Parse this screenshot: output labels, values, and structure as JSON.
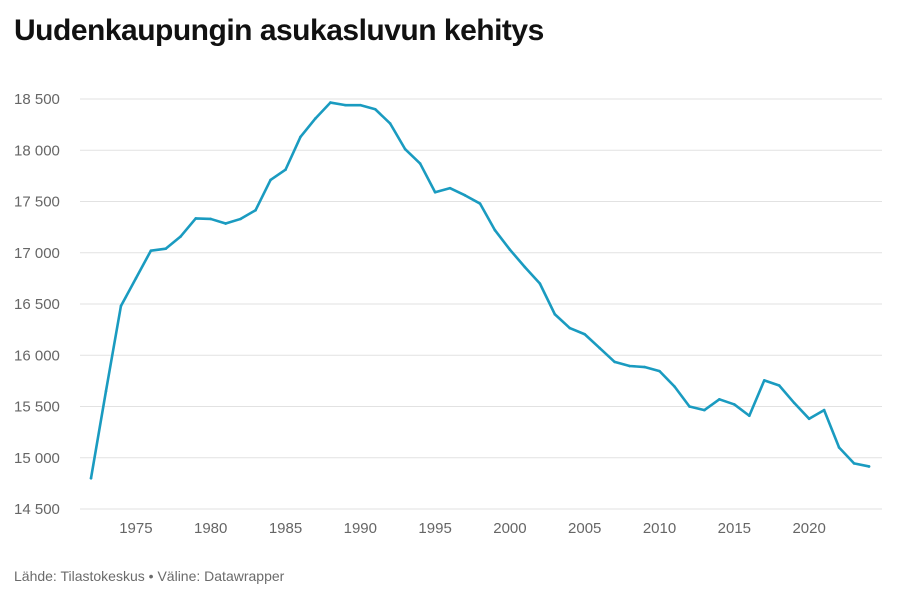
{
  "title": "Uudenkaupungin asukasluvun kehitys",
  "footer": {
    "source_label": "Lähde:",
    "source": "Tilastokeskus",
    "separator": "•",
    "tool_label": "Väline:",
    "tool": "Datawrapper"
  },
  "colors": {
    "line": "#1a9bc0",
    "grid": "#e2e2e2",
    "axis_text": "#666666"
  },
  "chart_data": {
    "type": "line",
    "title": "Uudenkaupungin asukasluvun kehitys",
    "xlabel": "",
    "ylabel": "",
    "ylim": [
      14500,
      18500
    ],
    "xlim": [
      1972,
      2024
    ],
    "yticks": [
      14500,
      15000,
      15500,
      16000,
      16500,
      17000,
      17500,
      18000,
      18500
    ],
    "ytick_labels": [
      "14 500",
      "15 000",
      "15 500",
      "16 000",
      "16 500",
      "17 000",
      "17 500",
      "18 000",
      "18 500"
    ],
    "xticks": [
      1975,
      1980,
      1985,
      1990,
      1995,
      2000,
      2005,
      2010,
      2015,
      2020
    ],
    "xtick_labels": [
      "1975",
      "1980",
      "1985",
      "1990",
      "1995",
      "2000",
      "2005",
      "2010",
      "2015",
      "2020"
    ],
    "grid": true,
    "series": [
      {
        "x": [
          1972,
          1973,
          1974,
          1975,
          1976,
          1977,
          1978,
          1979,
          1980,
          1981,
          1982,
          1983,
          1984,
          1985,
          1986,
          1987,
          1988,
          1989,
          1990,
          1991,
          1992,
          1993,
          1994,
          1995,
          1996,
          1997,
          1998,
          1999,
          2000,
          2001,
          2002,
          2003,
          2004,
          2005,
          2006,
          2007,
          2008,
          2009,
          2010,
          2011,
          2012,
          2013,
          2014,
          2015,
          2016,
          2017,
          2018,
          2019,
          2020,
          2021,
          2022,
          2023,
          2024
        ],
        "values": [
          14800,
          15650,
          16480,
          16750,
          17020,
          17040,
          17160,
          17335,
          17330,
          17285,
          17330,
          17415,
          17710,
          17810,
          18130,
          18310,
          18465,
          18440,
          18440,
          18400,
          18260,
          18010,
          17870,
          17590,
          17630,
          17560,
          17480,
          17220,
          17030,
          16860,
          16700,
          16400,
          16265,
          16205,
          16070,
          15935,
          15895,
          15885,
          15845,
          15695,
          15500,
          15465,
          15570,
          15520,
          15410,
          15755,
          15705,
          15535,
          15380,
          15465,
          15100,
          14945,
          14915
        ]
      }
    ]
  }
}
